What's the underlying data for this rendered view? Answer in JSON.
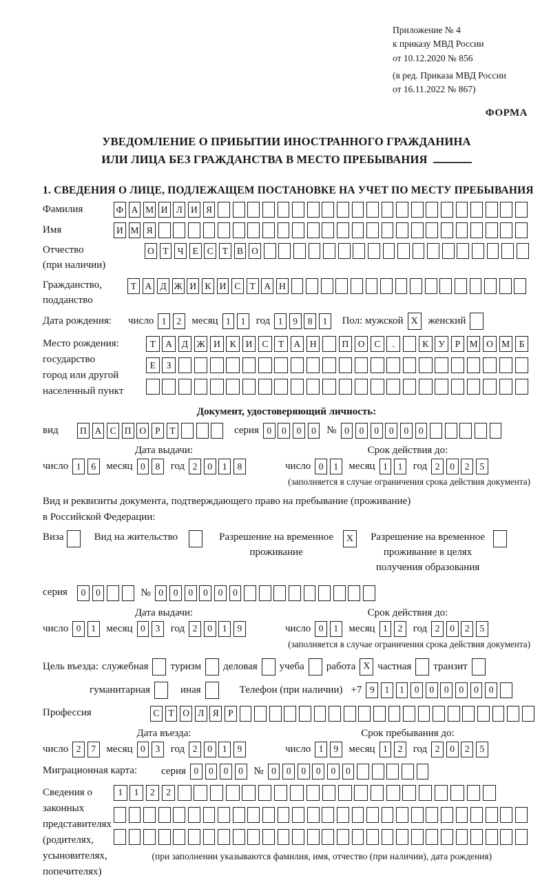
{
  "colors": {
    "ink": "#1c1c1c",
    "paper": "#ffffff"
  },
  "header": {
    "appendix_line1": "Приложение № 4",
    "appendix_line2": "к приказу МВД России",
    "appendix_line3": "от 10.12.2020 № 856",
    "edition_line1": "(в ред. Приказа МВД России",
    "edition_line2": "от 16.11.2022 № 867)",
    "form_label": "ФОРМА"
  },
  "title": {
    "line1": "УВЕДОМЛЕНИЕ О ПРИБЫТИИ ИНОСТРАННОГО ГРАЖДАНИНА",
    "line2": "ИЛИ ЛИЦА БЕЗ ГРАЖДАНСТВА В МЕСТО ПРЕБЫВАНИЯ"
  },
  "section1": {
    "heading": "1. СВЕДЕНИЯ О ЛИЦЕ, ПОДЛЕЖАЩЕМ ПОСТАНОВКЕ НА УЧЕТ ПО МЕСТУ ПРЕБЫВАНИЯ",
    "surname": {
      "label": "Фамилия",
      "cells": {
        "value": "ФАМИЛИЯ",
        "count": 28
      }
    },
    "given_name": {
      "label": "Имя",
      "cells": {
        "value": "ИМЯ",
        "count": 28
      }
    },
    "patronymic": {
      "label_line1": "Отчество",
      "label_line2": "(при наличии)",
      "cells": {
        "value": "ОТЧЕСТВО",
        "count": 26
      }
    },
    "citizenship": {
      "label_line1": "Гражданство,",
      "label_line2": "подданство",
      "cells": {
        "value": "ТАДЖИКИСТАН",
        "count": 27
      }
    },
    "birth_date": {
      "label": "Дата рождения:",
      "day_label": "число",
      "day": "12",
      "month_label": "месяц",
      "month": "11",
      "year_label": "год",
      "year": "1981"
    },
    "gender": {
      "male_label": "Пол: мужской",
      "male_checked": "X",
      "female_label": "женский",
      "female_checked": ""
    },
    "birth_place": {
      "label_line1": "Место рождения:",
      "label_line2": "государство",
      "label_line3": "город или другой",
      "label_line4": "населенный пункт",
      "row1": {
        "value": "ТАДЖИКИСТАН ПОС. КУРМОМБ",
        "count": 24
      },
      "row2": {
        "value": "ЕЗ",
        "count": 24
      },
      "row3": {
        "value": "",
        "count": 24
      }
    }
  },
  "identity_doc": {
    "heading": "Документ, удостоверяющий личность:",
    "kind_label": "вид",
    "kind": {
      "value": "ПАСПОРТ",
      "count": 10
    },
    "series_label": "серия",
    "series": {
      "value": "0000",
      "count": 4
    },
    "number_label": "№",
    "number": {
      "value": "000000",
      "count": 11
    },
    "issue_heading": "Дата выдачи:",
    "issue": {
      "day_label": "число",
      "day": "16",
      "month_label": "месяц",
      "month": "08",
      "year_label": "год",
      "year": "2018"
    },
    "valid_heading": "Срок действия до:",
    "valid": {
      "day_label": "число",
      "day": "01",
      "month_label": "месяц",
      "month": "11",
      "year_label": "год",
      "year": "2025"
    },
    "valid_note": "(заполняется в случае ограничения срока действия документа)"
  },
  "stay_doc": {
    "intro_line1": "Вид и реквизиты документа, подтверждающего право на пребывание (проживание)",
    "intro_line2": "в Российской Федерации:",
    "visa_label": "Виза",
    "visa_checked": "",
    "residence_permit_label": "Вид на жительство",
    "residence_permit_checked": "",
    "temp_permit_line1": "Разрешение на временное",
    "temp_permit_line2": "проживание",
    "temp_permit_checked": "X",
    "edu_permit_line1": "Разрешение на временное",
    "edu_permit_line2": "проживание в целях",
    "edu_permit_line3": "получения образования",
    "edu_permit_checked": "",
    "series_label": "серия",
    "series": {
      "value": "00",
      "count": 4
    },
    "number_label": "№",
    "number": {
      "value": "000000",
      "count": 15
    },
    "issue_heading": "Дата выдачи:",
    "issue": {
      "day_label": "число",
      "day": "01",
      "month_label": "месяц",
      "month": "03",
      "year_label": "год",
      "year": "2019"
    },
    "valid_heading": "Срок действия до:",
    "valid": {
      "day_label": "число",
      "day": "01",
      "month_label": "месяц",
      "month": "12",
      "year_label": "год",
      "year": "2025"
    },
    "valid_note": "(заполняется в случае ограничения срока действия документа)"
  },
  "visit": {
    "purpose_label": "Цель въезда:",
    "official_label": "служебная",
    "official_checked": "",
    "tourism_label": "туризм",
    "tourism_checked": "",
    "business_label": "деловая",
    "business_checked": "",
    "study_label": "учеба",
    "study_checked": "",
    "work_label": "работа",
    "work_checked": "X",
    "private_label": "частная",
    "private_checked": "",
    "transit_label": "транзит",
    "transit_checked": "",
    "humanitarian_label": "гуманитарная",
    "humanitarian_checked": "",
    "other_label": "иная",
    "other_checked": "",
    "phone_label": "Телефон (при наличии)",
    "phone_prefix": "+7",
    "phone": {
      "value": "911000000",
      "count": 10
    },
    "profession_label": "Профессия",
    "profession": {
      "value": "СТОЛЯР",
      "count": 26
    },
    "entry_heading": "Дата въезда:",
    "entry": {
      "day_label": "число",
      "day": "27",
      "month_label": "месяц",
      "month": "03",
      "year_label": "год",
      "year": "2019"
    },
    "stay_heading": "Срок пребывания до:",
    "stay": {
      "day_label": "число",
      "day": "19",
      "month_label": "месяц",
      "month": "12",
      "year_label": "год",
      "year": "2025"
    }
  },
  "migration_card": {
    "label": "Миграционная карта:",
    "series_label": "серия",
    "series": {
      "value": "0000",
      "count": 4
    },
    "number_label": "№",
    "number": {
      "value": "000000",
      "count": 11
    }
  },
  "representatives": {
    "label_line1": "Сведения о",
    "label_line2": "законных",
    "label_line3": "представителях",
    "label_line4": "(родителях,",
    "label_line5": "усыновителях,",
    "label_line6": "попечителях)",
    "row1": {
      "value": "1122",
      "count": 24
    },
    "row2": {
      "value": "",
      "count": 28
    },
    "row3": {
      "value": "",
      "count": 28
    },
    "note": "(при заполнении указываются фамилия, имя, отчество (при наличии), дата рождения)"
  }
}
